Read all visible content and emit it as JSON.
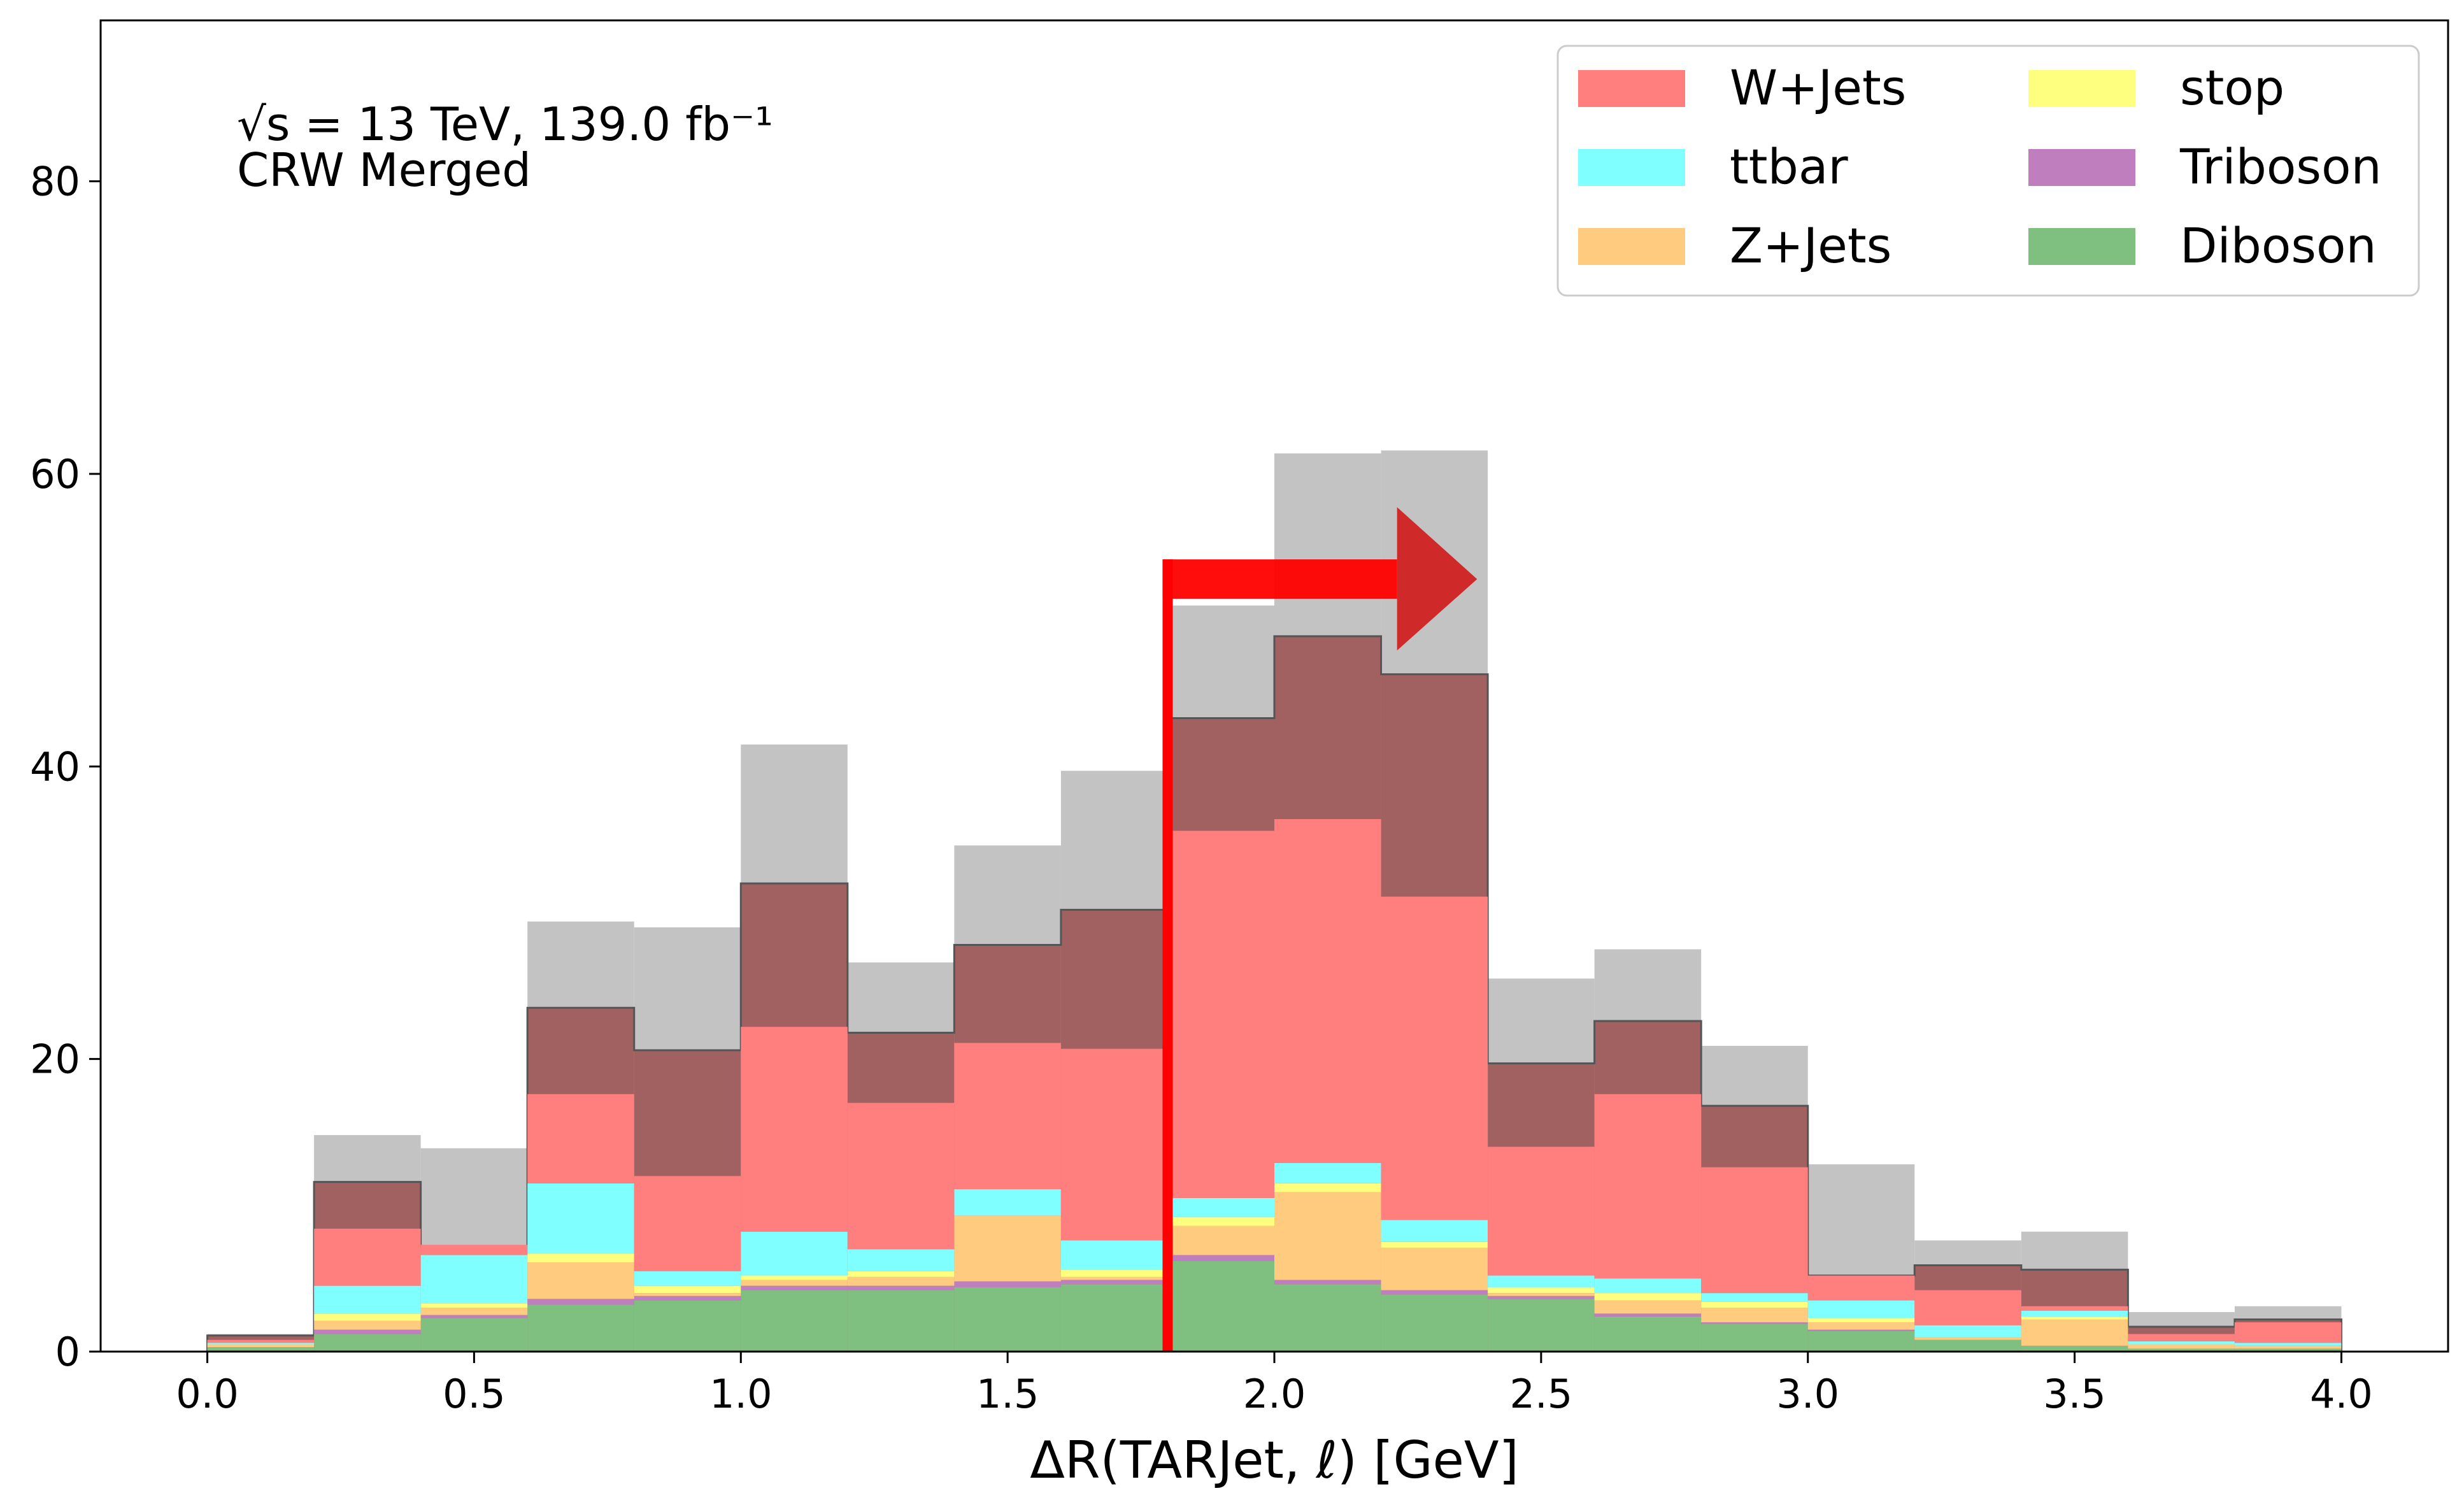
{
  "chart_data": {
    "type": "bar",
    "stacked": true,
    "histogram": true,
    "xlabel": "ΔR(TARJet, ℓ) [GeV]",
    "ylabel": "",
    "xlim": [
      -0.2,
      4.2
    ],
    "ylim": [
      0,
      91
    ],
    "xticks": [
      "0.0",
      "0.5",
      "1.0",
      "1.5",
      "2.0",
      "2.5",
      "3.0",
      "3.5",
      "4.0"
    ],
    "yticks": [
      "0",
      "20",
      "40",
      "60",
      "80"
    ],
    "bin_edges": [
      0.0,
      0.2,
      0.4,
      0.6,
      0.8,
      1.0,
      1.2,
      1.4,
      1.6,
      1.8,
      2.0,
      2.2,
      2.4,
      2.6,
      2.8,
      3.0,
      3.2,
      3.4,
      3.6,
      3.8,
      4.0
    ],
    "annotation": {
      "line1": "√s = 13 TeV, 139.0 fb⁻¹",
      "line2": "CRW Merged"
    },
    "series": [
      {
        "name": "Diboson",
        "color": "#7fbf7f",
        "values": [
          0.3,
          1.2,
          2.3,
          3.2,
          3.5,
          4.2,
          4.2,
          4.4,
          4.6,
          6.2,
          4.6,
          3.9,
          3.6,
          2.4,
          1.9,
          1.4,
          0.8,
          0.4,
          0.2,
          0.2
        ]
      },
      {
        "name": "Triboson",
        "color": "#bf7fbf",
        "values": [
          0.0,
          0.3,
          0.2,
          0.4,
          0.3,
          0.3,
          0.3,
          0.4,
          0.3,
          0.4,
          0.3,
          0.3,
          0.2,
          0.2,
          0.1,
          0.1,
          0.0,
          0.0,
          0.0,
          0.0
        ]
      },
      {
        "name": "Z+Jets",
        "color": "#ffcc7f",
        "values": [
          0.2,
          0.6,
          0.5,
          2.5,
          0.2,
          0.4,
          0.6,
          4.5,
          0.2,
          2.0,
          6.0,
          2.9,
          0.2,
          0.9,
          1.0,
          0.5,
          0.2,
          1.8,
          0.3,
          0.2
        ]
      },
      {
        "name": "stop",
        "color": "#ffff7f",
        "values": [
          0.0,
          0.5,
          0.3,
          0.6,
          0.5,
          0.3,
          0.4,
          0.0,
          0.5,
          0.6,
          0.6,
          0.4,
          0.4,
          0.5,
          0.4,
          0.3,
          0.0,
          0.2,
          0.0,
          0.0
        ]
      },
      {
        "name": "ttbar",
        "color": "#7fffff",
        "values": [
          0.1,
          1.9,
          3.3,
          4.8,
          1.0,
          3.0,
          1.5,
          1.8,
          2.0,
          1.3,
          1.4,
          1.5,
          0.8,
          1.0,
          0.6,
          1.2,
          0.8,
          0.4,
          0.2,
          0.2
        ]
      },
      {
        "name": "W+Jets",
        "color": "#ff7f7f",
        "values": [
          0.2,
          3.9,
          0.7,
          6.1,
          6.5,
          14.0,
          10.0,
          10.0,
          13.1,
          25.1,
          23.5,
          22.1,
          8.8,
          12.6,
          8.6,
          1.7,
          2.4,
          0.3,
          0.5,
          1.4
        ]
      }
    ],
    "total_outline": {
      "name": "",
      "color": "#7f0000",
      "values": [
        1.1,
        11.6,
        7.2,
        23.5,
        20.6,
        32.0,
        21.8,
        27.8,
        30.2,
        43.3,
        48.9,
        46.3,
        19.7,
        22.6,
        16.8,
        5.2,
        5.9,
        5.6,
        1.7,
        2.2
      ]
    },
    "uncertainty_band": {
      "name": "",
      "color": "#c3c3c3",
      "values": [
        1.2,
        14.8,
        13.9,
        29.4,
        29.0,
        41.5,
        26.6,
        34.6,
        39.7,
        51.0,
        61.4,
        61.6,
        25.5,
        27.5,
        20.9,
        12.8,
        7.6,
        8.2,
        2.7,
        3.1
      ]
    },
    "legend": {
      "placement": "top-right",
      "columns": 2,
      "entries": [
        "W+Jets",
        "ttbar",
        "Z+Jets",
        "stop",
        "Triboson",
        "Diboson"
      ]
    },
    "cut_arrow": {
      "x": 1.8,
      "y": 52.5,
      "direction": "right",
      "color": "#ff0000"
    },
    "grid": false
  }
}
